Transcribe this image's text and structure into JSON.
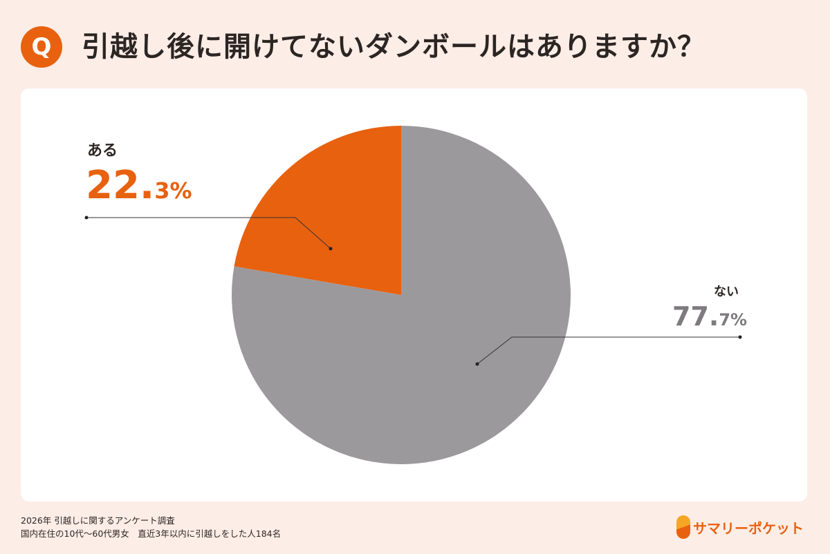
{
  "header": {
    "badge": "Q",
    "title": "引越し後に開けてないダンボールはありますか？"
  },
  "chart_data": {
    "type": "pie",
    "title": "引越し後に開けてないダンボールはありますか？",
    "slices": [
      {
        "label": "ある",
        "value": 22.3,
        "int": "22.",
        "dec": "3%",
        "color": "#e8610f"
      },
      {
        "label": "ない",
        "value": 77.7,
        "int": "77.",
        "dec": "7%",
        "color": "#9c999c"
      }
    ]
  },
  "footer": {
    "line1": "2026年  引越しに関するアンケート調査",
    "line2": "国内在住の10代～60代男女　直近3年以内に引越しをした人184名"
  },
  "brand": {
    "name": "サマリーポケット"
  }
}
